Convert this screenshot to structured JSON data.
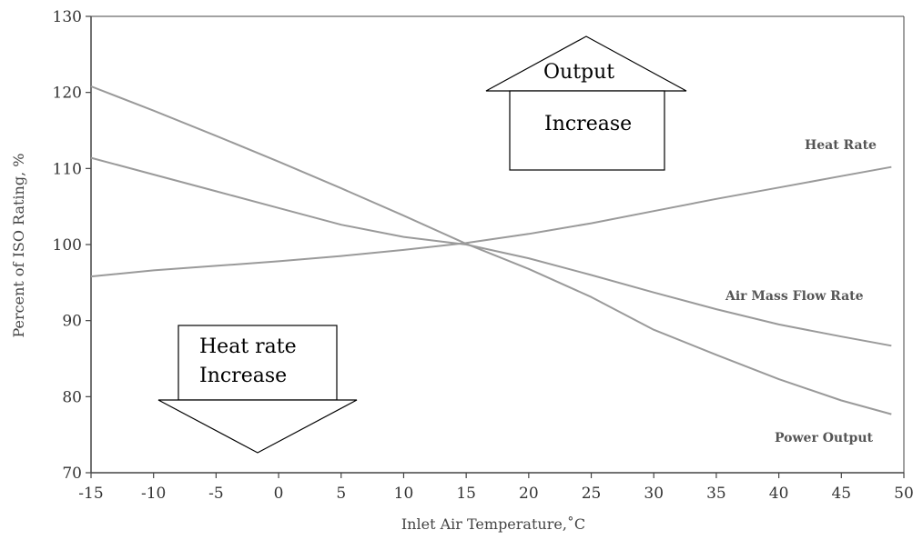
{
  "chart_data": {
    "type": "line",
    "title": "",
    "xlabel": "Inlet Air Temperature,˚C",
    "ylabel": "Percent of ISO Rating, %",
    "xlim": [
      -15,
      50
    ],
    "ylim": [
      70,
      130
    ],
    "xticks": [
      -15,
      -10,
      -5,
      0,
      5,
      10,
      15,
      20,
      25,
      30,
      35,
      40,
      45,
      50
    ],
    "yticks": [
      70,
      80,
      90,
      100,
      110,
      120,
      130
    ],
    "xtick_labels": [
      "-15",
      "-10",
      "-5",
      "0",
      "5",
      "10",
      "15",
      "20",
      "25",
      "30",
      "35",
      "40",
      "45",
      "50"
    ],
    "ytick_labels": [
      "70",
      "80",
      "90",
      "100",
      "110",
      "120",
      "130"
    ],
    "grid": false,
    "series": [
      {
        "name": "Heat Rate",
        "color": "#9a9a9a",
        "x": [
          -15,
          -10,
          -5,
          0,
          5,
          10,
          15,
          20,
          25,
          30,
          35,
          40,
          45,
          49
        ],
        "y": [
          95.8,
          96.6,
          97.2,
          97.8,
          98.5,
          99.3,
          100.2,
          101.4,
          102.8,
          104.4,
          106.0,
          107.5,
          109.0,
          110.2
        ]
      },
      {
        "name": "Air Mass Flow Rate",
        "color": "#9a9a9a",
        "x": [
          -15,
          -10,
          -5,
          0,
          5,
          10,
          15,
          20,
          25,
          30,
          35,
          40,
          45,
          49
        ],
        "y": [
          111.4,
          109.2,
          107.0,
          104.8,
          102.6,
          101.0,
          100.0,
          98.2,
          96.0,
          93.7,
          91.5,
          89.5,
          87.9,
          86.7
        ]
      },
      {
        "name": "Power Output",
        "color": "#9a9a9a",
        "x": [
          -15,
          -10,
          -5,
          0,
          5,
          10,
          15,
          20,
          25,
          30,
          35,
          40,
          45,
          49
        ],
        "y": [
          120.8,
          117.6,
          114.3,
          110.9,
          107.4,
          103.8,
          100.1,
          96.8,
          93.1,
          88.8,
          85.5,
          82.3,
          79.5,
          77.7
        ]
      }
    ],
    "annotations": {
      "up_arrow": {
        "line1": "Output",
        "line2": "Increase"
      },
      "down_arrow": {
        "line1": "Heat rate",
        "line2": "Increase"
      }
    }
  }
}
